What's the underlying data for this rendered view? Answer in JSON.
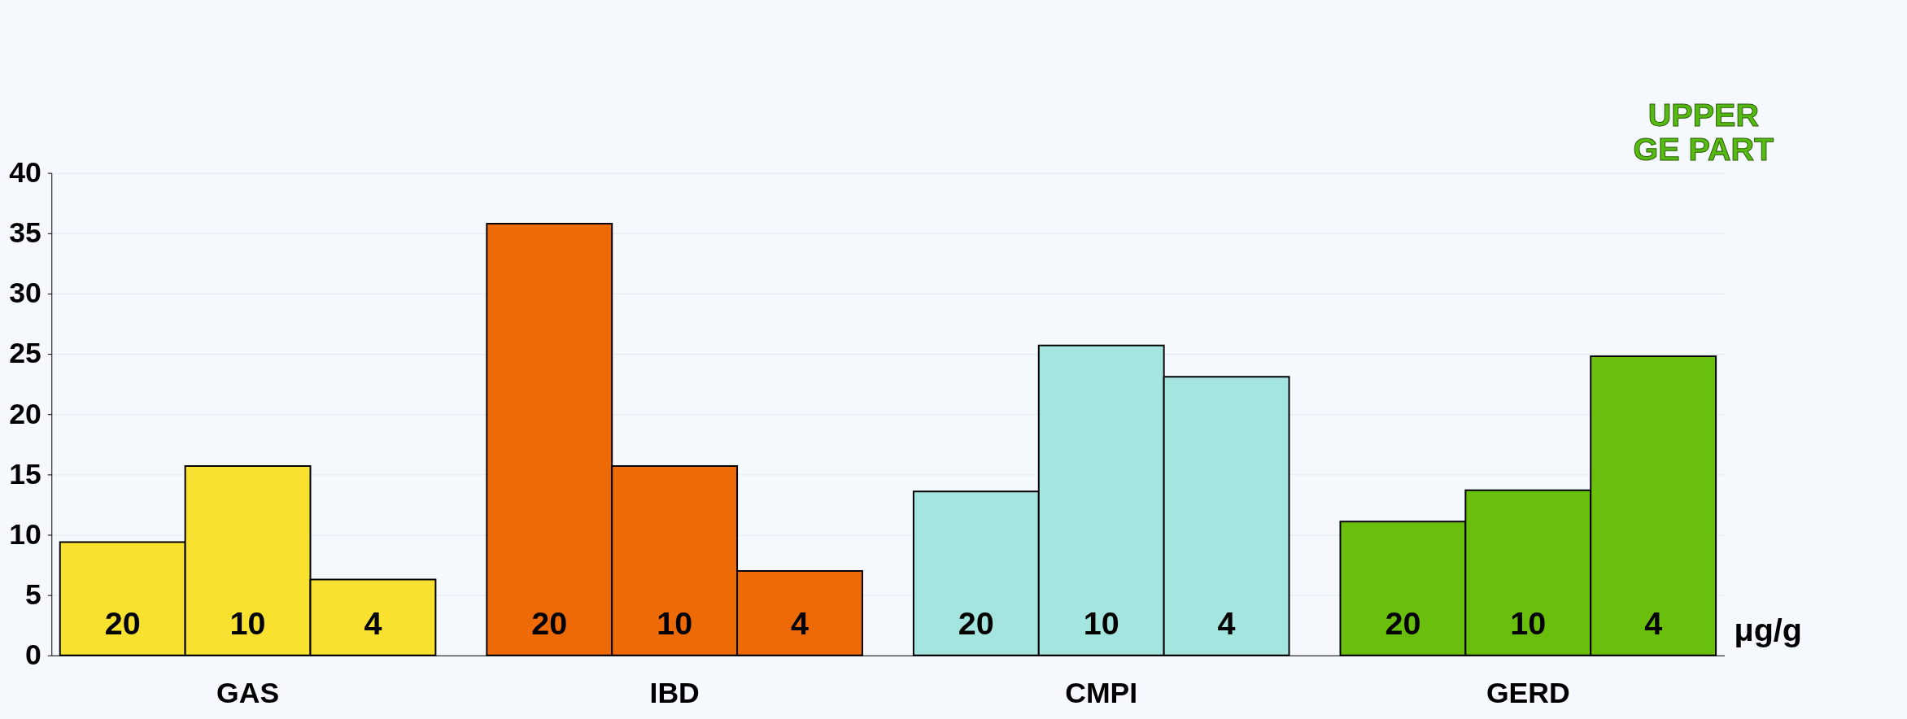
{
  "chart_data": {
    "type": "bar",
    "categories": [
      "GAS",
      "IBD",
      "CMPI",
      "GERD"
    ],
    "series": [
      {
        "name": "20",
        "colors": [
          "#f9e22f",
          "#ee6a06",
          "#a5e5e0",
          "#6abf0c"
        ],
        "values": [
          9.4,
          35.8,
          13.6,
          11.1
        ]
      },
      {
        "name": "10",
        "colors": [
          "#f9e22f",
          "#ee6a06",
          "#a5e5e0",
          "#6abf0c"
        ],
        "values": [
          15.7,
          15.7,
          25.7,
          13.7
        ]
      },
      {
        "name": "4",
        "colors": [
          "#f9e22f",
          "#ee6a06",
          "#a5e5e0",
          "#6abf0c"
        ],
        "values": [
          6.3,
          7.0,
          23.1,
          24.8
        ]
      }
    ],
    "xlabel": "μg/g",
    "ylim": [
      0,
      40
    ],
    "yticks": [
      0,
      5,
      10,
      15,
      20,
      25,
      30,
      35,
      40
    ],
    "grid": "y",
    "annotations": [
      "UPPER\nGE PART"
    ]
  }
}
